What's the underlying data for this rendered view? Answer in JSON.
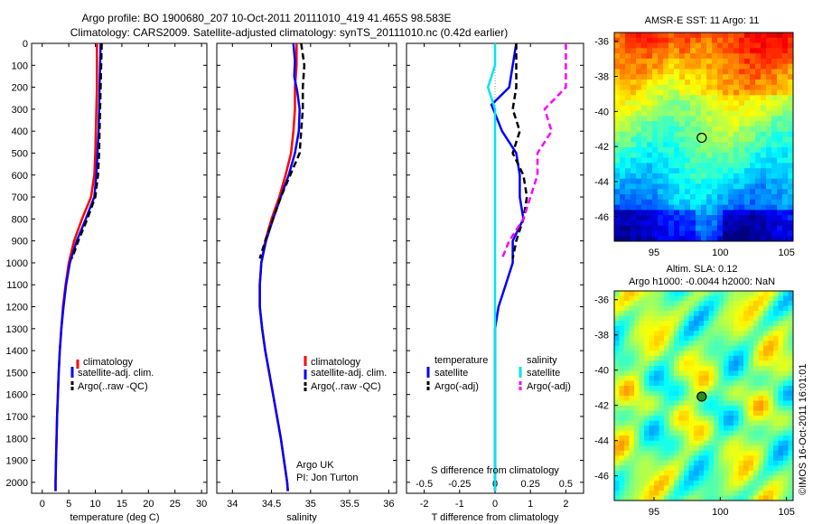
{
  "header": {
    "line1": "Argo profile: BO 1900680_207 10-Oct-2011 20111010_419 41.465S 98.583E",
    "line2": "Climatology: CARS2009. Satellite-adjusted climatology: synTS_20111010.nc (0.42d earlier)"
  },
  "colors": {
    "climatology": "#ff0000",
    "satellite": "#0000ff",
    "argo": "#000000",
    "salinity_satellite": "#00e5ee",
    "salinity_argo": "#ff00ff"
  },
  "chart_data": [
    {
      "type": "line",
      "name": "temperature-profile",
      "xlabel": "temperature (deg C)",
      "ylabel": "",
      "xlim": [
        -2,
        31
      ],
      "ylim": [
        2050,
        0
      ],
      "xticks": [
        "0",
        "5",
        "10",
        "15",
        "20",
        "25",
        "30"
      ],
      "yticks": [
        "0",
        "100",
        "200",
        "300",
        "400",
        "500",
        "600",
        "700",
        "800",
        "900",
        "1000",
        "1100",
        "1200",
        "1300",
        "1400",
        "1500",
        "1600",
        "1700",
        "1800",
        "1900",
        "2000"
      ],
      "legend": [
        "climatology",
        "satellite-adj. clim.",
        "Argo(..raw -QC)"
      ],
      "legend_position": "lower-right",
      "series": [
        {
          "name": "climatology",
          "color": "#ff0000",
          "style": "solid",
          "points": [
            [
              10.3,
              0
            ],
            [
              10.3,
              100
            ],
            [
              10.3,
              200
            ],
            [
              10.2,
              300
            ],
            [
              10.1,
              400
            ],
            [
              10,
              500
            ],
            [
              9.8,
              600
            ],
            [
              9.2,
              700
            ],
            [
              7.5,
              800
            ],
            [
              6,
              900
            ],
            [
              5,
              1000
            ],
            [
              4.4,
              1100
            ],
            [
              3.9,
              1200
            ],
            [
              3.6,
              1300
            ],
            [
              3.3,
              1400
            ],
            [
              3.1,
              1500
            ],
            [
              2.95,
              1600
            ],
            [
              2.8,
              1700
            ],
            [
              2.7,
              1800
            ],
            [
              2.6,
              1900
            ],
            [
              2.5,
              2000
            ],
            [
              2.5,
              2040
            ]
          ]
        },
        {
          "name": "satellite-adj. clim.",
          "color": "#0000ff",
          "style": "solid",
          "points": [
            [
              11,
              0
            ],
            [
              10.9,
              100
            ],
            [
              10.8,
              200
            ],
            [
              10.7,
              300
            ],
            [
              10.6,
              400
            ],
            [
              10.4,
              500
            ],
            [
              10.2,
              600
            ],
            [
              9.8,
              700
            ],
            [
              8.2,
              800
            ],
            [
              6.5,
              900
            ],
            [
              5.2,
              1000
            ],
            [
              4.5,
              1100
            ],
            [
              4,
              1200
            ],
            [
              3.6,
              1300
            ],
            [
              3.3,
              1400
            ],
            [
              3.1,
              1500
            ],
            [
              2.95,
              1600
            ],
            [
              2.8,
              1700
            ],
            [
              2.7,
              1800
            ],
            [
              2.6,
              1900
            ],
            [
              2.5,
              2000
            ],
            [
              2.5,
              2040
            ]
          ]
        },
        {
          "name": "Argo(..raw -QC)",
          "color": "#000000",
          "style": "dashed",
          "points": [
            [
              11.2,
              0
            ],
            [
              11.1,
              100
            ],
            [
              11,
              200
            ],
            [
              10.9,
              300
            ],
            [
              10.8,
              400
            ],
            [
              10.7,
              500
            ],
            [
              10.5,
              600
            ],
            [
              10,
              700
            ],
            [
              8.5,
              800
            ],
            [
              6.8,
              900
            ],
            [
              5.6,
              980
            ]
          ]
        }
      ]
    },
    {
      "type": "line",
      "name": "salinity-profile",
      "xlabel": "salinity",
      "ylabel": "",
      "xlim": [
        33.8,
        36.1
      ],
      "ylim": [
        2050,
        0
      ],
      "xticks": [
        "34",
        "34.5",
        "35",
        "35.5",
        "36"
      ],
      "legend": [
        "climatology",
        "satellite-adj. clim.",
        "Argo(..raw -QC)"
      ],
      "legend_position": "lower-right",
      "annotation": [
        "Argo UK",
        "PI: Jon Turton"
      ],
      "series": [
        {
          "name": "climatology",
          "color": "#ff0000",
          "style": "solid",
          "points": [
            [
              34.82,
              0
            ],
            [
              34.82,
              100
            ],
            [
              34.8,
              200
            ],
            [
              34.8,
              300
            ],
            [
              34.78,
              400
            ],
            [
              34.75,
              500
            ],
            [
              34.68,
              600
            ],
            [
              34.6,
              700
            ],
            [
              34.5,
              800
            ],
            [
              34.42,
              900
            ],
            [
              34.37,
              1000
            ],
            [
              34.35,
              1100
            ],
            [
              34.35,
              1200
            ],
            [
              34.38,
              1300
            ],
            [
              34.42,
              1400
            ],
            [
              34.47,
              1500
            ],
            [
              34.52,
              1600
            ],
            [
              34.57,
              1700
            ],
            [
              34.62,
              1800
            ],
            [
              34.66,
              1900
            ],
            [
              34.7,
              2000
            ],
            [
              34.71,
              2040
            ]
          ]
        },
        {
          "name": "satellite-adj. clim.",
          "color": "#0000ff",
          "style": "solid",
          "points": [
            [
              34.78,
              0
            ],
            [
              34.8,
              80
            ],
            [
              34.79,
              150
            ],
            [
              34.83,
              220
            ],
            [
              34.86,
              300
            ],
            [
              34.85,
              400
            ],
            [
              34.8,
              500
            ],
            [
              34.72,
              600
            ],
            [
              34.62,
              700
            ],
            [
              34.52,
              800
            ],
            [
              34.43,
              900
            ],
            [
              34.37,
              1000
            ],
            [
              34.35,
              1100
            ],
            [
              34.35,
              1200
            ],
            [
              34.38,
              1300
            ],
            [
              34.42,
              1400
            ],
            [
              34.47,
              1500
            ],
            [
              34.52,
              1600
            ],
            [
              34.57,
              1700
            ],
            [
              34.62,
              1800
            ],
            [
              34.66,
              1900
            ],
            [
              34.7,
              2000
            ],
            [
              34.71,
              2040
            ]
          ]
        },
        {
          "name": "Argo(..raw -QC)",
          "color": "#000000",
          "style": "dashed",
          "points": [
            [
              34.88,
              0
            ],
            [
              34.92,
              100
            ],
            [
              34.9,
              200
            ],
            [
              34.9,
              300
            ],
            [
              34.88,
              400
            ],
            [
              34.86,
              500
            ],
            [
              34.74,
              600
            ],
            [
              34.62,
              700
            ],
            [
              34.52,
              800
            ],
            [
              34.42,
              900
            ],
            [
              34.35,
              980
            ]
          ]
        }
      ]
    },
    {
      "type": "line",
      "name": "difference-profile",
      "xlabel": "T difference from climatology",
      "xlabel2": "S difference from climatology",
      "xlim": [
        -2.5,
        2.5
      ],
      "ylim": [
        2050,
        0
      ],
      "xticks": [
        "-2",
        "-1",
        "0",
        "1",
        "2"
      ],
      "xticks2": [
        "-0.5",
        "-0.25",
        "0",
        "0.25",
        "0.5"
      ],
      "legend_headers": [
        "temperature",
        "salinity"
      ],
      "legend": [
        "satellite",
        "Argo(-adj)",
        "satellite",
        "Argo(-adj)"
      ],
      "legend_position": "lower-center",
      "series": [
        {
          "name": "satellite",
          "group": "temperature",
          "color": "#0000ff",
          "style": "solid",
          "points": [
            [
              0.6,
              0
            ],
            [
              0.5,
              100
            ],
            [
              0.4,
              200
            ],
            [
              -0.1,
              280
            ],
            [
              0.2,
              400
            ],
            [
              0.6,
              500
            ],
            [
              0.7,
              600
            ],
            [
              0.7,
              700
            ],
            [
              0.8,
              800
            ],
            [
              0.5,
              900
            ],
            [
              0.5,
              1000
            ],
            [
              0.3,
              1100
            ],
            [
              0.1,
              1200
            ],
            [
              0,
              1300
            ],
            [
              0,
              2040
            ]
          ]
        },
        {
          "name": "Argo(-adj)",
          "group": "temperature",
          "color": "#000000",
          "style": "dashed",
          "points": [
            [
              0.6,
              0
            ],
            [
              0.6,
              100
            ],
            [
              0.6,
              200
            ],
            [
              0.5,
              300
            ],
            [
              0.7,
              400
            ],
            [
              0.5,
              500
            ],
            [
              0.8,
              600
            ],
            [
              0.9,
              700
            ],
            [
              0.8,
              800
            ],
            [
              0.6,
              900
            ],
            [
              0.5,
              980
            ]
          ]
        },
        {
          "name": "satellite",
          "group": "salinity",
          "color": "#00e5ee",
          "style": "solid",
          "points": [
            [
              0,
              0
            ],
            [
              0,
              100
            ],
            [
              -0.05,
              200
            ],
            [
              0,
              300
            ],
            [
              0,
              400
            ],
            [
              0,
              500
            ],
            [
              0,
              600
            ],
            [
              0,
              700
            ],
            [
              0,
              800
            ],
            [
              0,
              900
            ],
            [
              0,
              1000
            ],
            [
              0,
              1100
            ],
            [
              0,
              2040
            ]
          ]
        },
        {
          "name": "Argo(-adj)",
          "group": "salinity",
          "color": "#ff00ff",
          "style": "dashed",
          "points": [
            [
              0.5,
              0
            ],
            [
              0.5,
              100
            ],
            [
              0.5,
              200
            ],
            [
              0.35,
              300
            ],
            [
              0.4,
              400
            ],
            [
              0.3,
              500
            ],
            [
              0.3,
              600
            ],
            [
              0.25,
              700
            ],
            [
              0.2,
              800
            ],
            [
              0.1,
              900
            ],
            [
              0.05,
              980
            ]
          ]
        }
      ]
    },
    {
      "type": "heatmap",
      "name": "sst-map",
      "title": "AMSR-E SST: 11 Argo: 11",
      "xlim": [
        92,
        105.5
      ],
      "ylim": [
        -47.4,
        -35.5
      ],
      "xticks": [
        "95",
        "100",
        "105"
      ],
      "yticks": [
        "-36",
        "-38",
        "-40",
        "-42",
        "-44",
        "-46"
      ],
      "marker": [
        98.6,
        -41.5
      ]
    },
    {
      "type": "heatmap",
      "name": "sla-map",
      "title": "Altim. SLA: 0.12",
      "subtitle": "Argo h1000: -0.0044 h2000: NaN",
      "xlim": [
        92,
        105.5
      ],
      "ylim": [
        -47.4,
        -35.5
      ],
      "xticks": [
        "95",
        "100",
        "105"
      ],
      "yticks": [
        "-36",
        "-38",
        "-40",
        "-42",
        "-44",
        "-46"
      ],
      "marker": [
        98.6,
        -41.5
      ],
      "credit": "©IMOS 16-Oct-2011 16:01:01"
    }
  ]
}
